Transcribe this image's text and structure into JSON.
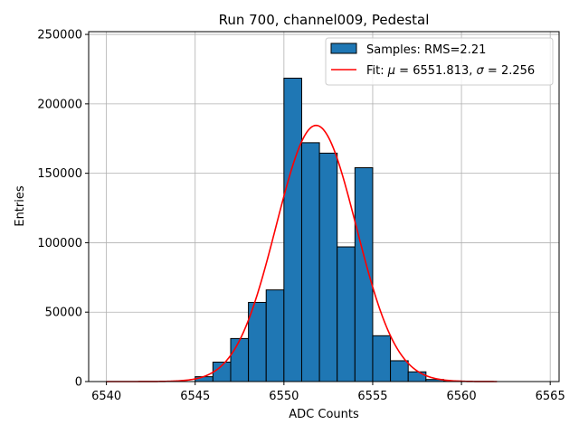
{
  "chart_data": {
    "type": "bar",
    "title": "Run 700, channel009, Pedestal",
    "xlabel": "ADC Counts",
    "ylabel": "Entries",
    "xlim": [
      6539,
      6565.5
    ],
    "ylim": [
      0,
      252000
    ],
    "grid": true,
    "x_ticks": [
      6540,
      6545,
      6550,
      6555,
      6560,
      6565
    ],
    "y_ticks": [
      0,
      50000,
      100000,
      150000,
      200000,
      250000
    ],
    "bar_color": "#1f77b4",
    "bar_edge_color": "#000000",
    "fit_color": "#ff0000",
    "legend_position": "top-right",
    "histogram": {
      "name": "Samples: RMS=2.21",
      "bin_width": 1,
      "bins": [
        {
          "left": 6545,
          "value": 3500
        },
        {
          "left": 6546,
          "value": 14000
        },
        {
          "left": 6547,
          "value": 31000
        },
        {
          "left": 6548,
          "value": 57000
        },
        {
          "left": 6549,
          "value": 66000
        },
        {
          "left": 6550,
          "value": 218500
        },
        {
          "left": 6551,
          "value": 172000
        },
        {
          "left": 6552,
          "value": 164500
        },
        {
          "left": 6553,
          "value": 97000
        },
        {
          "left": 6554,
          "value": 154000
        },
        {
          "left": 6555,
          "value": 33000
        },
        {
          "left": 6556,
          "value": 15000
        },
        {
          "left": 6557,
          "value": 7000
        },
        {
          "left": 6558,
          "value": 1500
        },
        {
          "left": 6559,
          "value": 400
        }
      ]
    },
    "fit": {
      "legend_prefix": "Fit: ",
      "mu_symbol": "μ",
      "sigma_symbol": "σ",
      "mu": 6551.813,
      "sigma": 2.256,
      "mu_text": "6551.813",
      "sigma_text": "2.256",
      "amplitude": 184500,
      "x_range": [
        6540,
        6562
      ]
    }
  }
}
